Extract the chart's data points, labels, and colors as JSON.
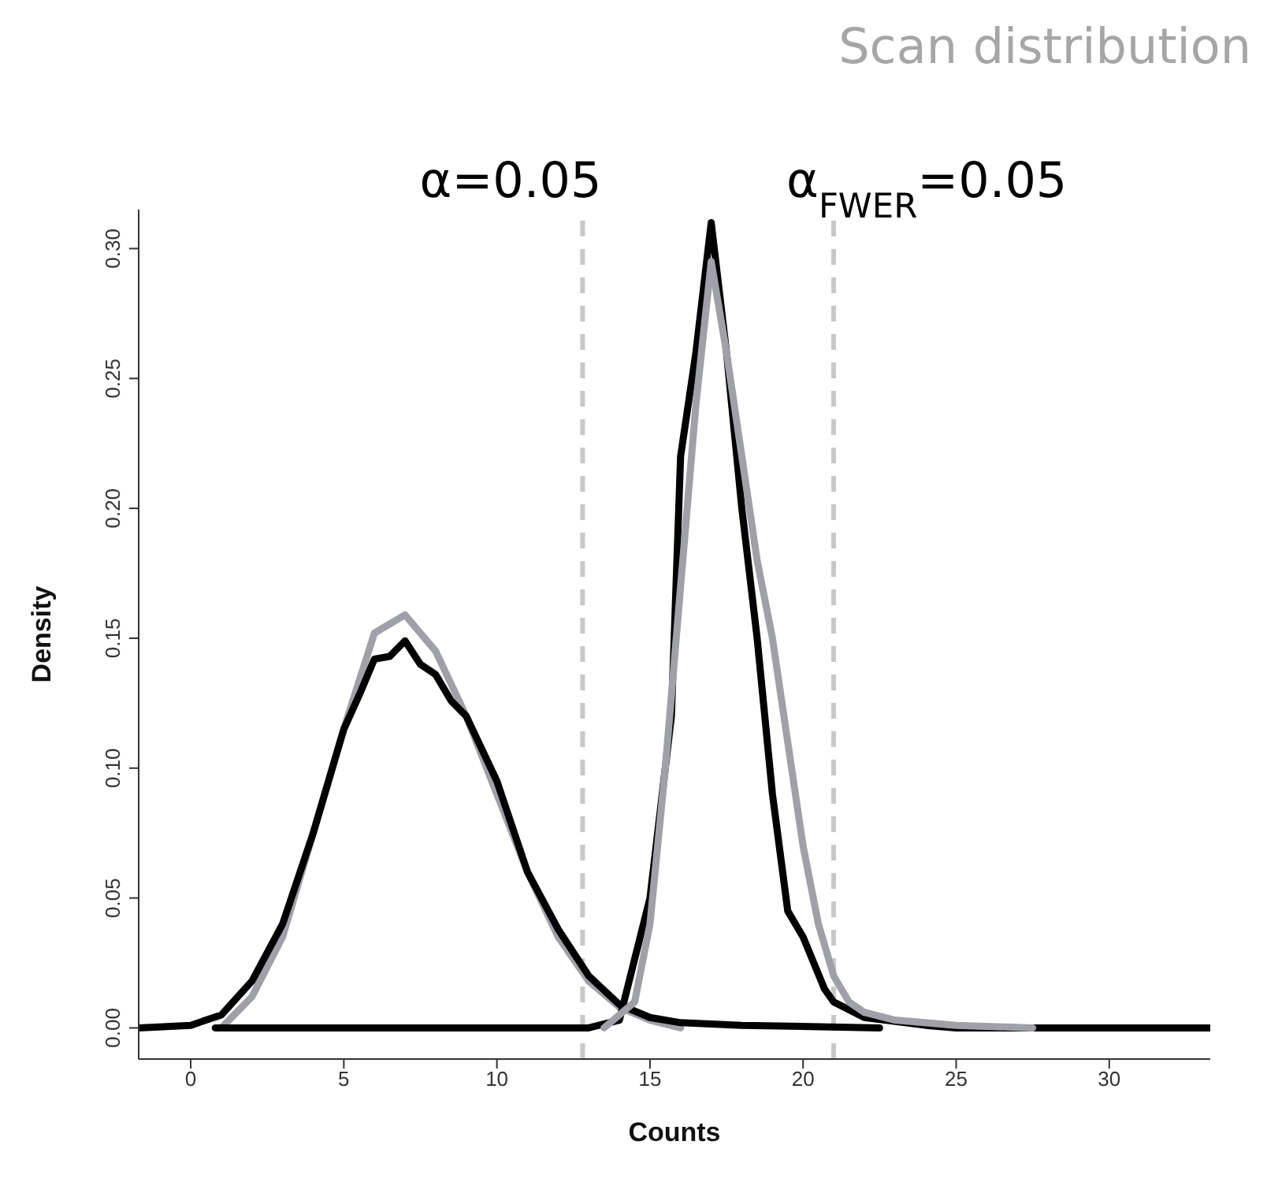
{
  "chart_data": {
    "type": "line",
    "title": "Scan distribution",
    "xlabel": "Counts",
    "ylabel": "Density",
    "xlim": [
      -1.7,
      33.3
    ],
    "ylim": [
      -0.012,
      0.315
    ],
    "xticks": [
      0,
      5,
      10,
      15,
      20,
      25,
      30
    ],
    "yticks": [
      {
        "value": 0,
        "label": "0.00"
      },
      {
        "value": 0.05,
        "label": "0.05"
      },
      {
        "value": 0.1,
        "label": "0.10"
      },
      {
        "value": 0.15,
        "label": "0.15"
      },
      {
        "value": 0.2,
        "label": "0.20"
      },
      {
        "value": 0.25,
        "label": "0.25"
      },
      {
        "value": 0.3,
        "label": "0.30"
      }
    ],
    "grid": false,
    "marker": "none",
    "line_style": "solid",
    "series": [
      {
        "color": "#a0a0a8",
        "x": [
          1,
          2,
          3,
          4,
          5,
          6,
          7,
          8,
          9,
          10,
          11,
          12,
          13,
          14,
          15,
          16
        ],
        "values": [
          0,
          0.012,
          0.035,
          0.075,
          0.115,
          0.152,
          0.159,
          0.145,
          0.12,
          0.09,
          0.06,
          0.035,
          0.018,
          0.008,
          0.003,
          0
        ]
      },
      {
        "color": "#000000",
        "x": [
          -1.7,
          0,
          1,
          2,
          3,
          4,
          4.5,
          5,
          5.5,
          6,
          6.5,
          7,
          7.5,
          8,
          8.5,
          9,
          10,
          11,
          12,
          13,
          14,
          15,
          16,
          18,
          22.5
        ],
        "values": [
          0,
          0.001,
          0.005,
          0.018,
          0.04,
          0.075,
          0.095,
          0.115,
          0.128,
          0.142,
          0.143,
          0.149,
          0.14,
          0.136,
          0.126,
          0.12,
          0.095,
          0.06,
          0.038,
          0.02,
          0.009,
          0.004,
          0.002,
          0.001,
          0
        ]
      },
      {
        "color": "#000000",
        "x": [
          0.8,
          13,
          14,
          15,
          15.7,
          16,
          16.5,
          17,
          17.5,
          18,
          18.5,
          19,
          19.5,
          20,
          20.7,
          21,
          22,
          24,
          25,
          33.3
        ],
        "values": [
          0,
          0,
          0.003,
          0.05,
          0.12,
          0.22,
          0.26,
          0.31,
          0.26,
          0.2,
          0.15,
          0.09,
          0.045,
          0.035,
          0.015,
          0.01,
          0.004,
          0.001,
          0,
          0
        ]
      },
      {
        "color": "#a0a0a8",
        "x": [
          13.5,
          14.5,
          15,
          15.5,
          16,
          16.5,
          17,
          17.5,
          18,
          18.5,
          19,
          19.5,
          20,
          20.5,
          21,
          21.5,
          22,
          23,
          25,
          27.5
        ],
        "values": [
          0,
          0.01,
          0.04,
          0.1,
          0.17,
          0.24,
          0.295,
          0.26,
          0.22,
          0.18,
          0.15,
          0.11,
          0.07,
          0.04,
          0.02,
          0.01,
          0.006,
          0.003,
          0.001,
          0
        ]
      }
    ],
    "ref_lines": [
      {
        "axis": "x",
        "value": 12.8,
        "color": "#c8c8c8",
        "line_style": "dashed"
      },
      {
        "axis": "x",
        "value": 21.0,
        "color": "#c8c8c8",
        "line_style": "dashed"
      }
    ],
    "annotations": [
      "α=0.05",
      "α$_{FWER}$=0.05"
    ]
  }
}
